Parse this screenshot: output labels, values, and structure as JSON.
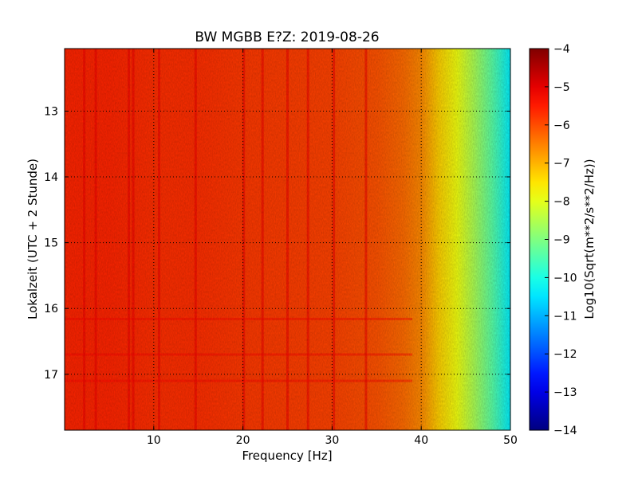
{
  "chart_data": {
    "type": "heatmap",
    "title": "BW MGBB E?Z: 2019-08-26",
    "xlabel": "Frequency [Hz]",
    "ylabel": "Lokalzeit (UTC + 2 Stunde)",
    "xlim": [
      0,
      50
    ],
    "ylim": [
      12.05,
      17.85
    ],
    "y_inverted": true,
    "x_ticks": [
      10,
      20,
      30,
      40,
      50
    ],
    "y_ticks": [
      13,
      14,
      15,
      16,
      17
    ],
    "grid": true,
    "colormap": "jet",
    "colorbar": {
      "label": "Log10(Sqrt(m**2/s**2/Hz))",
      "min": -14,
      "max": -4,
      "ticks": [
        -4,
        -5,
        -6,
        -7,
        -8,
        -9,
        -10,
        -11,
        -12,
        -13,
        -14
      ]
    },
    "frequency_profile": {
      "frequency_hz": [
        0,
        5,
        10,
        15,
        20,
        25,
        30,
        35,
        38,
        40,
        42,
        44,
        46,
        48,
        50
      ],
      "log10_amplitude": [
        -5.6,
        -5.6,
        -5.7,
        -5.7,
        -5.8,
        -5.85,
        -5.9,
        -6.05,
        -6.3,
        -6.6,
        -7.3,
        -7.9,
        -8.6,
        -9.4,
        -10.4
      ]
    },
    "vertical_lines_hz": [
      2.2,
      3.5,
      7.2,
      7.7,
      10.6,
      14.7,
      20.1,
      22.2,
      25.0,
      27.3,
      30.2,
      33.8
    ],
    "horizontal_bands_time": [
      16.16,
      16.7,
      17.1
    ]
  }
}
